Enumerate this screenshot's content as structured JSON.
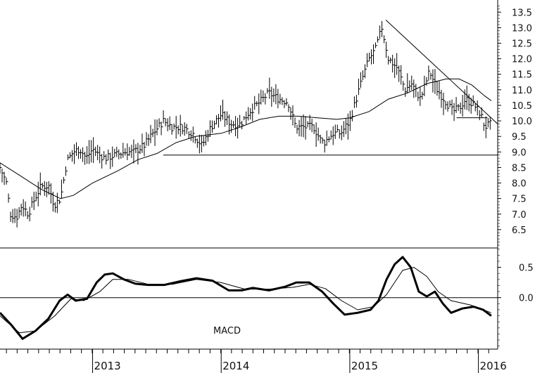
{
  "chart_data": [
    {
      "type": "ohlc",
      "panel": "price",
      "y_ticks": [
        6.5,
        7.0,
        7.5,
        8.0,
        8.5,
        9.0,
        9.5,
        10.0,
        10.5,
        11.0,
        11.5,
        12.0,
        12.5,
        13.0,
        13.5
      ],
      "y_tick_labels": [
        "6.5",
        "7.0",
        "7.5",
        "8.0",
        "8.5",
        "9.0",
        "9.5",
        "10.0",
        "10.5",
        "11.0",
        "11.5",
        "12.0",
        "12.5",
        "13.0",
        "13.5"
      ],
      "ylim": [
        6.0,
        13.8
      ],
      "x_labels": [
        "2013",
        "2014",
        "2015",
        "2016"
      ],
      "x_label_years": [
        2013,
        2014,
        2015,
        2016
      ],
      "xlim": [
        2012.28,
        2016.15
      ],
      "grid": false,
      "weekly_close": [
        [
          2012.28,
          8.5
        ],
        [
          2012.33,
          8.0
        ],
        [
          2012.36,
          7.0
        ],
        [
          2012.41,
          6.9
        ],
        [
          2012.45,
          7.3
        ],
        [
          2012.5,
          7.0
        ],
        [
          2012.55,
          7.5
        ],
        [
          2012.6,
          7.9
        ],
        [
          2012.66,
          7.9
        ],
        [
          2012.7,
          7.3
        ],
        [
          2012.75,
          7.5
        ],
        [
          2012.8,
          8.7
        ],
        [
          2012.85,
          9.0
        ],
        [
          2012.9,
          9.1
        ],
        [
          2012.95,
          8.8
        ],
        [
          2013.0,
          9.1
        ],
        [
          2013.05,
          8.9
        ],
        [
          2013.1,
          8.8
        ],
        [
          2013.18,
          8.9
        ],
        [
          2013.25,
          9.0
        ],
        [
          2013.32,
          9.0
        ],
        [
          2013.4,
          9.2
        ],
        [
          2013.47,
          9.6
        ],
        [
          2013.55,
          10.0
        ],
        [
          2013.62,
          9.8
        ],
        [
          2013.7,
          9.8
        ],
        [
          2013.78,
          9.6
        ],
        [
          2013.85,
          9.2
        ],
        [
          2013.92,
          9.8
        ],
        [
          2014.0,
          10.2
        ],
        [
          2014.08,
          9.9
        ],
        [
          2014.15,
          9.9
        ],
        [
          2014.22,
          10.3
        ],
        [
          2014.3,
          10.6
        ],
        [
          2014.37,
          10.9
        ],
        [
          2014.45,
          10.7
        ],
        [
          2014.52,
          10.6
        ],
        [
          2014.58,
          9.8
        ],
        [
          2014.65,
          9.8
        ],
        [
          2014.72,
          9.8
        ],
        [
          2014.77,
          9.4
        ],
        [
          2014.8,
          9.3
        ],
        [
          2014.87,
          9.6
        ],
        [
          2014.93,
          9.6
        ],
        [
          2015.0,
          10.0
        ],
        [
          2015.05,
          10.7
        ],
        [
          2015.1,
          11.4
        ],
        [
          2015.15,
          12.0
        ],
        [
          2015.2,
          12.3
        ],
        [
          2015.25,
          13.0
        ],
        [
          2015.3,
          12.0
        ],
        [
          2015.37,
          11.7
        ],
        [
          2015.43,
          11.0
        ],
        [
          2015.48,
          11.2
        ],
        [
          2015.55,
          10.7
        ],
        [
          2015.62,
          11.6
        ],
        [
          2015.68,
          11.0
        ],
        [
          2015.75,
          10.6
        ],
        [
          2015.8,
          10.3
        ],
        [
          2015.85,
          10.4
        ],
        [
          2015.9,
          10.7
        ],
        [
          2015.97,
          10.5
        ],
        [
          2016.02,
          10.2
        ],
        [
          2016.05,
          9.8
        ],
        [
          2016.1,
          9.9
        ]
      ],
      "moving_average": [
        [
          2012.28,
          8.65
        ],
        [
          2012.45,
          8.2
        ],
        [
          2012.6,
          7.8
        ],
        [
          2012.75,
          7.5
        ],
        [
          2012.85,
          7.6
        ],
        [
          2013.0,
          8.0
        ],
        [
          2013.2,
          8.4
        ],
        [
          2013.35,
          8.75
        ],
        [
          2013.5,
          8.95
        ],
        [
          2013.65,
          9.3
        ],
        [
          2013.8,
          9.5
        ],
        [
          2014.0,
          9.6
        ],
        [
          2014.15,
          9.8
        ],
        [
          2014.3,
          10.05
        ],
        [
          2014.45,
          10.15
        ],
        [
          2014.6,
          10.15
        ],
        [
          2014.75,
          10.1
        ],
        [
          2014.9,
          10.05
        ],
        [
          2015.0,
          10.1
        ],
        [
          2015.15,
          10.3
        ],
        [
          2015.3,
          10.7
        ],
        [
          2015.45,
          10.9
        ],
        [
          2015.6,
          11.2
        ],
        [
          2015.75,
          11.35
        ],
        [
          2015.85,
          11.35
        ],
        [
          2015.95,
          11.15
        ],
        [
          2016.05,
          10.8
        ],
        [
          2016.1,
          10.65
        ]
      ],
      "annotations": [
        {
          "kind": "support-line",
          "y": 8.9,
          "x_from": 2013.55,
          "x_to": 2016.15
        },
        {
          "kind": "support-line",
          "y": 10.1,
          "x_from": 2015.83,
          "x_to": 2016.07
        },
        {
          "kind": "trendline",
          "from": [
            2015.28,
            13.25
          ],
          "to": [
            2016.15,
            9.9
          ]
        }
      ]
    },
    {
      "type": "line",
      "panel": "macd",
      "label": "MACD",
      "y_ticks": [
        0.0,
        0.5
      ],
      "y_tick_labels": [
        "0.0",
        "0.5"
      ],
      "ylim": [
        -0.85,
        0.82
      ],
      "zero_line": true,
      "series": [
        {
          "name": "MACD",
          "weight": "thick",
          "points": [
            [
              2012.28,
              -0.25
            ],
            [
              2012.35,
              -0.45
            ],
            [
              2012.42,
              -0.68
            ],
            [
              2012.5,
              -0.55
            ],
            [
              2012.58,
              -0.35
            ],
            [
              2012.65,
              -0.05
            ],
            [
              2012.7,
              0.05
            ],
            [
              2012.75,
              -0.05
            ],
            [
              2012.82,
              -0.02
            ],
            [
              2012.88,
              0.25
            ],
            [
              2012.93,
              0.38
            ],
            [
              2012.98,
              0.4
            ],
            [
              2013.05,
              0.3
            ],
            [
              2013.12,
              0.23
            ],
            [
              2013.2,
              0.21
            ],
            [
              2013.3,
              0.21
            ],
            [
              2013.4,
              0.27
            ],
            [
              2013.5,
              0.32
            ],
            [
              2013.6,
              0.28
            ],
            [
              2013.7,
              0.12
            ],
            [
              2013.78,
              0.12
            ],
            [
              2013.85,
              0.16
            ],
            [
              2013.95,
              0.12
            ],
            [
              2014.05,
              0.18
            ],
            [
              2014.12,
              0.25
            ],
            [
              2014.2,
              0.25
            ],
            [
              2014.28,
              0.1
            ],
            [
              2014.35,
              -0.1
            ],
            [
              2014.42,
              -0.28
            ],
            [
              2014.5,
              -0.25
            ],
            [
              2014.58,
              -0.2
            ],
            [
              2014.63,
              -0.05
            ],
            [
              2014.68,
              0.3
            ],
            [
              2014.73,
              0.55
            ],
            [
              2014.78,
              0.67
            ],
            [
              2014.83,
              0.5
            ],
            [
              2014.88,
              0.1
            ],
            [
              2014.93,
              0.02
            ],
            [
              2014.98,
              0.1
            ],
            [
              2015.03,
              -0.1
            ],
            [
              2015.08,
              -0.25
            ],
            [
              2015.15,
              -0.18
            ],
            [
              2015.22,
              -0.15
            ],
            [
              2015.28,
              -0.2
            ],
            [
              2015.33,
              -0.3
            ]
          ]
        },
        {
          "name": "Signal",
          "weight": "thin",
          "points": [
            [
              2012.28,
              -0.3
            ],
            [
              2012.4,
              -0.58
            ],
            [
              2012.5,
              -0.55
            ],
            [
              2012.62,
              -0.3
            ],
            [
              2012.72,
              -0.02
            ],
            [
              2012.8,
              -0.05
            ],
            [
              2012.9,
              0.1
            ],
            [
              2012.98,
              0.3
            ],
            [
              2013.08,
              0.3
            ],
            [
              2013.2,
              0.22
            ],
            [
              2013.35,
              0.22
            ],
            [
              2013.5,
              0.3
            ],
            [
              2013.65,
              0.25
            ],
            [
              2013.8,
              0.14
            ],
            [
              2013.95,
              0.14
            ],
            [
              2014.1,
              0.17
            ],
            [
              2014.2,
              0.22
            ],
            [
              2014.3,
              0.15
            ],
            [
              2014.4,
              -0.05
            ],
            [
              2014.5,
              -0.2
            ],
            [
              2014.6,
              -0.15
            ],
            [
              2014.68,
              0.05
            ],
            [
              2014.78,
              0.45
            ],
            [
              2014.85,
              0.5
            ],
            [
              2014.93,
              0.35
            ],
            [
              2015.0,
              0.1
            ],
            [
              2015.08,
              -0.05
            ],
            [
              2015.2,
              -0.12
            ],
            [
              2015.33,
              -0.25
            ]
          ]
        }
      ]
    }
  ]
}
